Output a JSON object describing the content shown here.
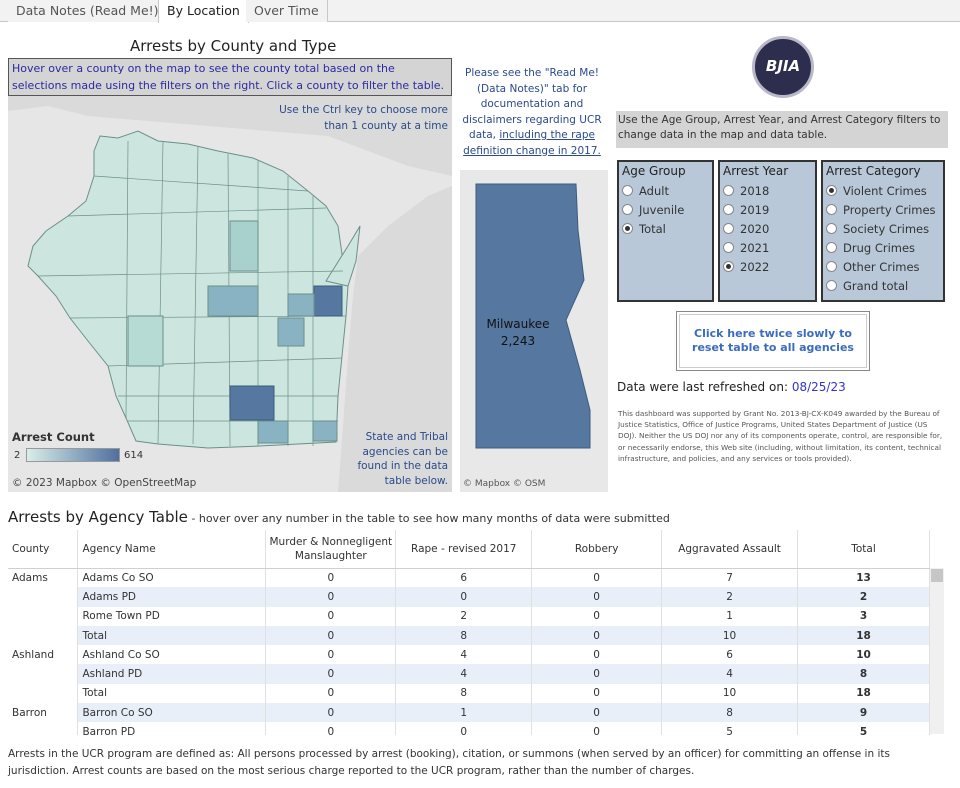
{
  "tabs": [
    "Data Notes (Read Me!)",
    "By Location",
    "Over Time"
  ],
  "map_title": "Arrests by County and Type",
  "hover_instructions": "Hover over a county on the map to see the county total based on the selections made using  the filters on the right. Click a county to filter the table.",
  "ctrl_note": "Use the Ctrl key to choose more than 1 county at a time",
  "tribal_note": "State and Tribal agencies  can be found in the data table below.",
  "legend": {
    "title": "Arrest Count",
    "min": "2",
    "max": "614"
  },
  "map_credit": "© 2023 Mapbox  © OpenStreetMap",
  "readme_note": {
    "text": "Please see the \"Read Me! (Data Notes)\" tab for documentation and disclaimers regarding UCR data, ",
    "link": "including the rape definition change in 2017."
  },
  "milwaukee": {
    "name": "Milwaukee",
    "value": "2,243",
    "credit": "© Mapbox  © OSM"
  },
  "logo_text": "BJIA",
  "filter_info": "Use the Age Group, Arrest Year, and Arrest Category filters to change data in the map and data table.",
  "filters": {
    "age_group": {
      "title": "Age Group",
      "options": [
        "Adult",
        "Juvenile",
        "Total"
      ],
      "selected": "Total"
    },
    "arrest_year": {
      "title": "Arrest Year",
      "options": [
        "2018",
        "2019",
        "2020",
        "2021",
        "2022"
      ],
      "selected": "2022"
    },
    "arrest_category": {
      "title": "Arrest Category",
      "options": [
        "Violent Crimes",
        "Property Crimes",
        "Society Crimes",
        "Drug Crimes",
        "Other Crimes",
        "Grand total"
      ],
      "selected": "Violent Crimes"
    }
  },
  "reset_button": "Click here twice slowly to reset table to all agencies",
  "refreshed": {
    "label": "Data were last refreshed on:",
    "date": "08/25/23"
  },
  "disclaimer": "This dashboard was supported by Grant No. 2013-BJ-CX-K049 awarded by the Bureau of Justice Statistics, Office of Justice Programs, United States Department of Justice (US DOJ). Neither the US DOJ nor any of its components operate, control, are responsible for, or necessarily endorse, this Web site (including, without limitation, its content, technical infrastructure, and policies, and any services or tools provided).",
  "table": {
    "title": "Arrests by Agency Table",
    "subtitle": " - hover over any number in the table to see how many months of data were submitted",
    "columns": [
      "County",
      "Agency Name",
      "Murder & Nonnegligent Manslaughter",
      "Rape - revised 2017",
      "Robbery",
      "Aggravated Assault",
      "Total"
    ],
    "rows": [
      [
        "Adams",
        "Adams Co SO",
        "0",
        "6",
        "0",
        "7",
        "13"
      ],
      [
        "",
        "Adams PD",
        "0",
        "0",
        "0",
        "2",
        "2"
      ],
      [
        "",
        "Rome Town PD",
        "0",
        "2",
        "0",
        "1",
        "3"
      ],
      [
        "",
        "Total",
        "0",
        "8",
        "0",
        "10",
        "18"
      ],
      [
        "Ashland",
        "Ashland Co SO",
        "0",
        "4",
        "0",
        "6",
        "10"
      ],
      [
        "",
        "Ashland PD",
        "0",
        "4",
        "0",
        "4",
        "8"
      ],
      [
        "",
        "Total",
        "0",
        "8",
        "0",
        "10",
        "18"
      ],
      [
        "Barron",
        "Barron Co SO",
        "0",
        "1",
        "0",
        "8",
        "9"
      ],
      [
        "",
        "Barron PD",
        "0",
        "0",
        "0",
        "5",
        "5"
      ]
    ]
  },
  "footnote": "Arrests in the UCR program are defined as: All persons processed by arrest (booking), citation, or summons (when served by an officer) for committing an offense in its jurisdiction.  Arrest counts are based on the most serious charge reported to the UCR program, rather than the number of charges."
}
